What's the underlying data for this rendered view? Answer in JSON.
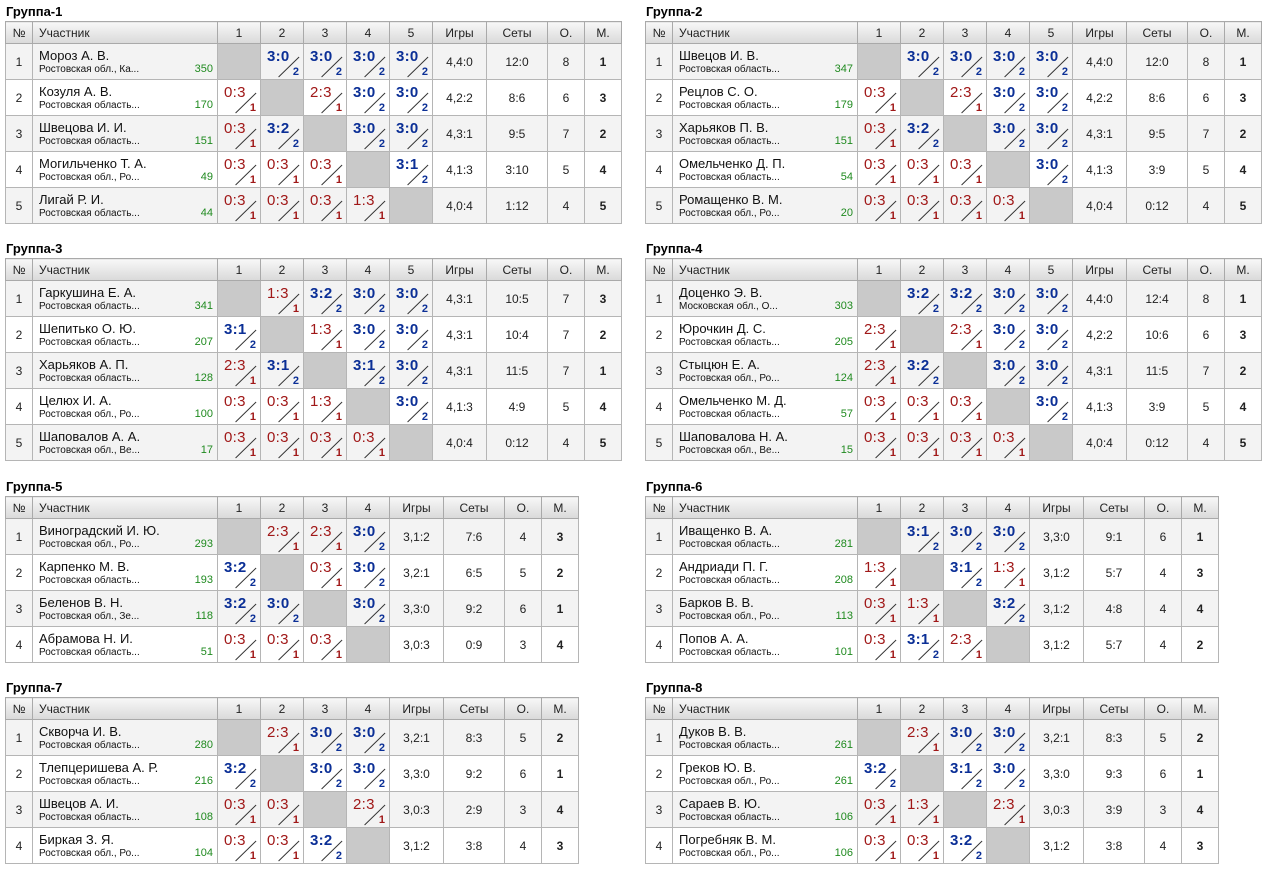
{
  "headers": {
    "no": "№",
    "participant": "Участник",
    "games": "Игры",
    "sets": "Сеты",
    "points": "О.",
    "place": "М."
  },
  "groups": [
    {
      "title": "Группа-1",
      "players": [
        {
          "no": "1",
          "name": "Мороз А. В.",
          "region": "Ростовская обл., Ка...",
          "rating": "350",
          "results": [
            null,
            "3:0|2",
            "3:0|2",
            "3:0|2",
            "3:0|2"
          ],
          "games": "4,4:0",
          "sets": "12:0",
          "points": "8",
          "place": "1"
        },
        {
          "no": "2",
          "name": "Козуля А. В.",
          "region": "Ростовская область...",
          "rating": "170",
          "results": [
            "0:3|1",
            null,
            "2:3|1",
            "3:0|2",
            "3:0|2"
          ],
          "games": "4,2:2",
          "sets": "8:6",
          "points": "6",
          "place": "3"
        },
        {
          "no": "3",
          "name": "Швецова И. И.",
          "region": "Ростовская область...",
          "rating": "151",
          "results": [
            "0:3|1",
            "3:2|2",
            null,
            "3:0|2",
            "3:0|2"
          ],
          "games": "4,3:1",
          "sets": "9:5",
          "points": "7",
          "place": "2"
        },
        {
          "no": "4",
          "name": "Могильченко Т. А.",
          "region": "Ростовская обл., Ро...",
          "rating": "49",
          "results": [
            "0:3|1",
            "0:3|1",
            "0:3|1",
            null,
            "3:1|2"
          ],
          "games": "4,1:3",
          "sets": "3:10",
          "points": "5",
          "place": "4"
        },
        {
          "no": "5",
          "name": "Лигай Р. И.",
          "region": "Ростовская область...",
          "rating": "44",
          "results": [
            "0:3|1",
            "0:3|1",
            "0:3|1",
            "1:3|1",
            null
          ],
          "games": "4,0:4",
          "sets": "1:12",
          "points": "4",
          "place": "5"
        }
      ]
    },
    {
      "title": "Группа-2",
      "players": [
        {
          "no": "1",
          "name": "Швецов И. В.",
          "region": "Ростовская область...",
          "rating": "347",
          "results": [
            null,
            "3:0|2",
            "3:0|2",
            "3:0|2",
            "3:0|2"
          ],
          "games": "4,4:0",
          "sets": "12:0",
          "points": "8",
          "place": "1"
        },
        {
          "no": "2",
          "name": "Рецлов С. О.",
          "region": "Ростовская область...",
          "rating": "179",
          "results": [
            "0:3|1",
            null,
            "2:3|1",
            "3:0|2",
            "3:0|2"
          ],
          "games": "4,2:2",
          "sets": "8:6",
          "points": "6",
          "place": "3"
        },
        {
          "no": "3",
          "name": "Харьяков П. В.",
          "region": "Ростовская область...",
          "rating": "151",
          "results": [
            "0:3|1",
            "3:2|2",
            null,
            "3:0|2",
            "3:0|2"
          ],
          "games": "4,3:1",
          "sets": "9:5",
          "points": "7",
          "place": "2"
        },
        {
          "no": "4",
          "name": "Омельченко Д. П.",
          "region": "Ростовская область...",
          "rating": "54",
          "results": [
            "0:3|1",
            "0:3|1",
            "0:3|1",
            null,
            "3:0|2"
          ],
          "games": "4,1:3",
          "sets": "3:9",
          "points": "5",
          "place": "4"
        },
        {
          "no": "5",
          "name": "Ромащенко В. М.",
          "region": "Ростовская обл., Ро...",
          "rating": "20",
          "results": [
            "0:3|1",
            "0:3|1",
            "0:3|1",
            "0:3|1",
            null
          ],
          "games": "4,0:4",
          "sets": "0:12",
          "points": "4",
          "place": "5"
        }
      ]
    },
    {
      "title": "Группа-3",
      "players": [
        {
          "no": "1",
          "name": "Гаркушина Е. А.",
          "region": "Ростовская область...",
          "rating": "341",
          "results": [
            null,
            "1:3|1",
            "3:2|2",
            "3:0|2",
            "3:0|2"
          ],
          "games": "4,3:1",
          "sets": "10:5",
          "points": "7",
          "place": "3"
        },
        {
          "no": "2",
          "name": "Шепитько О. Ю.",
          "region": "Ростовская область...",
          "rating": "207",
          "results": [
            "3:1|2",
            null,
            "1:3|1",
            "3:0|2",
            "3:0|2"
          ],
          "games": "4,3:1",
          "sets": "10:4",
          "points": "7",
          "place": "2"
        },
        {
          "no": "3",
          "name": "Харьяков А. П.",
          "region": "Ростовская область...",
          "rating": "128",
          "results": [
            "2:3|1",
            "3:1|2",
            null,
            "3:1|2",
            "3:0|2"
          ],
          "games": "4,3:1",
          "sets": "11:5",
          "points": "7",
          "place": "1"
        },
        {
          "no": "4",
          "name": "Целюх И. А.",
          "region": "Ростовская обл., Ро...",
          "rating": "100",
          "results": [
            "0:3|1",
            "0:3|1",
            "1:3|1",
            null,
            "3:0|2"
          ],
          "games": "4,1:3",
          "sets": "4:9",
          "points": "5",
          "place": "4"
        },
        {
          "no": "5",
          "name": "Шаповалов А. А.",
          "region": "Ростовская обл., Ве...",
          "rating": "17",
          "results": [
            "0:3|1",
            "0:3|1",
            "0:3|1",
            "0:3|1",
            null
          ],
          "games": "4,0:4",
          "sets": "0:12",
          "points": "4",
          "place": "5"
        }
      ]
    },
    {
      "title": "Группа-4",
      "players": [
        {
          "no": "1",
          "name": "Доценко Э. В.",
          "region": "Московская обл., О...",
          "rating": "303",
          "results": [
            null,
            "3:2|2",
            "3:2|2",
            "3:0|2",
            "3:0|2"
          ],
          "games": "4,4:0",
          "sets": "12:4",
          "points": "8",
          "place": "1"
        },
        {
          "no": "2",
          "name": "Юрочкин Д. С.",
          "region": "Ростовская область...",
          "rating": "205",
          "results": [
            "2:3|1",
            null,
            "2:3|1",
            "3:0|2",
            "3:0|2"
          ],
          "games": "4,2:2",
          "sets": "10:6",
          "points": "6",
          "place": "3"
        },
        {
          "no": "3",
          "name": "Стыцюн Е. А.",
          "region": "Ростовская обл., Ро...",
          "rating": "124",
          "results": [
            "2:3|1",
            "3:2|2",
            null,
            "3:0|2",
            "3:0|2"
          ],
          "games": "4,3:1",
          "sets": "11:5",
          "points": "7",
          "place": "2"
        },
        {
          "no": "4",
          "name": "Омельченко М. Д.",
          "region": "Ростовская область...",
          "rating": "57",
          "results": [
            "0:3|1",
            "0:3|1",
            "0:3|1",
            null,
            "3:0|2"
          ],
          "games": "4,1:3",
          "sets": "3:9",
          "points": "5",
          "place": "4"
        },
        {
          "no": "5",
          "name": "Шаповалова Н. А.",
          "region": "Ростовская обл., Ве...",
          "rating": "15",
          "results": [
            "0:3|1",
            "0:3|1",
            "0:3|1",
            "0:3|1",
            null
          ],
          "games": "4,0:4",
          "sets": "0:12",
          "points": "4",
          "place": "5"
        }
      ]
    },
    {
      "title": "Группа-5",
      "players": [
        {
          "no": "1",
          "name": "Виноградский И. Ю.",
          "region": "Ростовская обл., Ро...",
          "rating": "293",
          "results": [
            null,
            "2:3|1",
            "2:3|1",
            "3:0|2"
          ],
          "games": "3,1:2",
          "sets": "7:6",
          "points": "4",
          "place": "3"
        },
        {
          "no": "2",
          "name": "Карпенко М. В.",
          "region": "Ростовская область...",
          "rating": "193",
          "results": [
            "3:2|2",
            null,
            "0:3|1",
            "3:0|2"
          ],
          "games": "3,2:1",
          "sets": "6:5",
          "points": "5",
          "place": "2"
        },
        {
          "no": "3",
          "name": "Беленов В. Н.",
          "region": "Ростовская обл., Зе...",
          "rating": "118",
          "results": [
            "3:2|2",
            "3:0|2",
            null,
            "3:0|2"
          ],
          "games": "3,3:0",
          "sets": "9:2",
          "points": "6",
          "place": "1"
        },
        {
          "no": "4",
          "name": "Абрамова Н. И.",
          "region": "Ростовская область...",
          "rating": "51",
          "results": [
            "0:3|1",
            "0:3|1",
            "0:3|1",
            null
          ],
          "games": "3,0:3",
          "sets": "0:9",
          "points": "3",
          "place": "4"
        }
      ]
    },
    {
      "title": "Группа-6",
      "players": [
        {
          "no": "1",
          "name": "Иващенко В. А.",
          "region": "Ростовская область...",
          "rating": "281",
          "results": [
            null,
            "3:1|2",
            "3:0|2",
            "3:0|2"
          ],
          "games": "3,3:0",
          "sets": "9:1",
          "points": "6",
          "place": "1"
        },
        {
          "no": "2",
          "name": "Андриади П. Г.",
          "region": "Ростовская область...",
          "rating": "208",
          "results": [
            "1:3|1",
            null,
            "3:1|2",
            "1:3|1"
          ],
          "games": "3,1:2",
          "sets": "5:7",
          "points": "4",
          "place": "3"
        },
        {
          "no": "3",
          "name": "Барков В. В.",
          "region": "Ростовская обл., Ро...",
          "rating": "113",
          "results": [
            "0:3|1",
            "1:3|1",
            null,
            "3:2|2"
          ],
          "games": "3,1:2",
          "sets": "4:8",
          "points": "4",
          "place": "4"
        },
        {
          "no": "4",
          "name": "Попов А. А.",
          "region": "Ростовская область...",
          "rating": "101",
          "results": [
            "0:3|1",
            "3:1|2",
            "2:3|1",
            null
          ],
          "games": "3,1:2",
          "sets": "5:7",
          "points": "4",
          "place": "2"
        }
      ]
    },
    {
      "title": "Группа-7",
      "players": [
        {
          "no": "1",
          "name": "Скворча И. В.",
          "region": "Ростовская область...",
          "rating": "280",
          "results": [
            null,
            "2:3|1",
            "3:0|2",
            "3:0|2"
          ],
          "games": "3,2:1",
          "sets": "8:3",
          "points": "5",
          "place": "2"
        },
        {
          "no": "2",
          "name": "Тлепцеришева А. Р.",
          "region": "Ростовская область...",
          "rating": "216",
          "results": [
            "3:2|2",
            null,
            "3:0|2",
            "3:0|2"
          ],
          "games": "3,3:0",
          "sets": "9:2",
          "points": "6",
          "place": "1"
        },
        {
          "no": "3",
          "name": "Швецов А. И.",
          "region": "Ростовская область...",
          "rating": "108",
          "results": [
            "0:3|1",
            "0:3|1",
            null,
            "2:3|1"
          ],
          "games": "3,0:3",
          "sets": "2:9",
          "points": "3",
          "place": "4"
        },
        {
          "no": "4",
          "name": "Биркая З. Я.",
          "region": "Ростовская обл., Ро...",
          "rating": "104",
          "results": [
            "0:3|1",
            "0:3|1",
            "3:2|2",
            null
          ],
          "games": "3,1:2",
          "sets": "3:8",
          "points": "4",
          "place": "3"
        }
      ]
    },
    {
      "title": "Группа-8",
      "players": [
        {
          "no": "1",
          "name": "Дуков В. В.",
          "region": "Ростовская область...",
          "rating": "261",
          "results": [
            null,
            "2:3|1",
            "3:0|2",
            "3:0|2"
          ],
          "games": "3,2:1",
          "sets": "8:3",
          "points": "5",
          "place": "2"
        },
        {
          "no": "2",
          "name": "Греков Ю. В.",
          "region": "Ростовская обл., Ро...",
          "rating": "261",
          "results": [
            "3:2|2",
            null,
            "3:1|2",
            "3:0|2"
          ],
          "games": "3,3:0",
          "sets": "9:3",
          "points": "6",
          "place": "1"
        },
        {
          "no": "3",
          "name": "Сараев В. Ю.",
          "region": "Ростовская область...",
          "rating": "106",
          "results": [
            "0:3|1",
            "1:3|1",
            null,
            "2:3|1"
          ],
          "games": "3,0:3",
          "sets": "3:9",
          "points": "3",
          "place": "4"
        },
        {
          "no": "4",
          "name": "Погребняк В. М.",
          "region": "Ростовская обл., Ро...",
          "rating": "106",
          "results": [
            "0:3|1",
            "0:3|1",
            "3:2|2",
            null
          ],
          "games": "3,1:2",
          "sets": "3:8",
          "points": "4",
          "place": "3"
        }
      ]
    }
  ]
}
